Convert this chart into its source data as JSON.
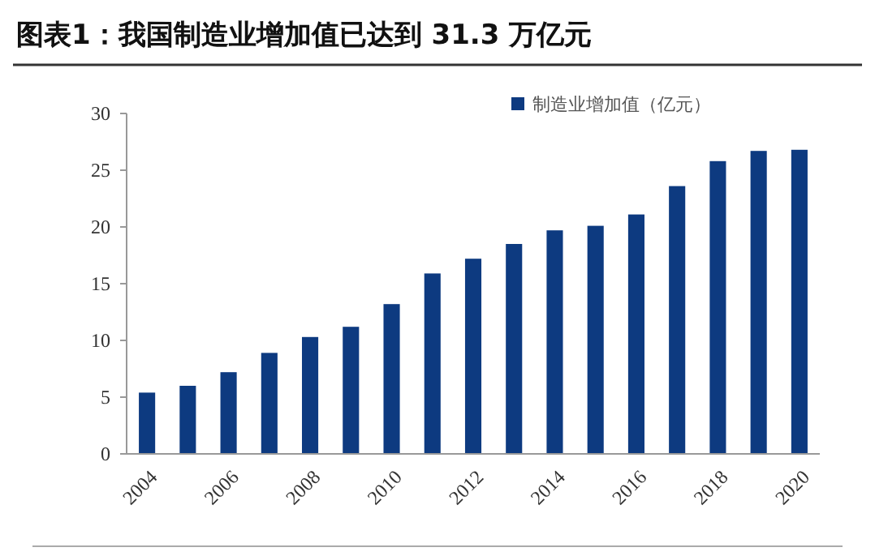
{
  "chart_data": {
    "type": "bar",
    "title": "图表1：我国制造业增加值已达到 31.3 万亿元",
    "categories": [
      "2004",
      null,
      "2006",
      null,
      "2008",
      null,
      "2010",
      null,
      "2012",
      null,
      "2014",
      null,
      "2016",
      null,
      "2018",
      null,
      "2020"
    ],
    "series": [
      {
        "name": "制造业增加值（亿元）",
        "color": "#0d3a80",
        "values": [
          5.4,
          6.0,
          7.2,
          8.9,
          10.3,
          11.2,
          13.2,
          15.9,
          17.2,
          18.5,
          19.7,
          20.1,
          21.1,
          23.6,
          25.8,
          26.7,
          26.8
        ]
      }
    ],
    "ylim": [
      0,
      30
    ],
    "yticks": [
      0,
      5,
      10,
      15,
      20,
      25,
      30
    ],
    "grid": false,
    "legend": "top right"
  }
}
